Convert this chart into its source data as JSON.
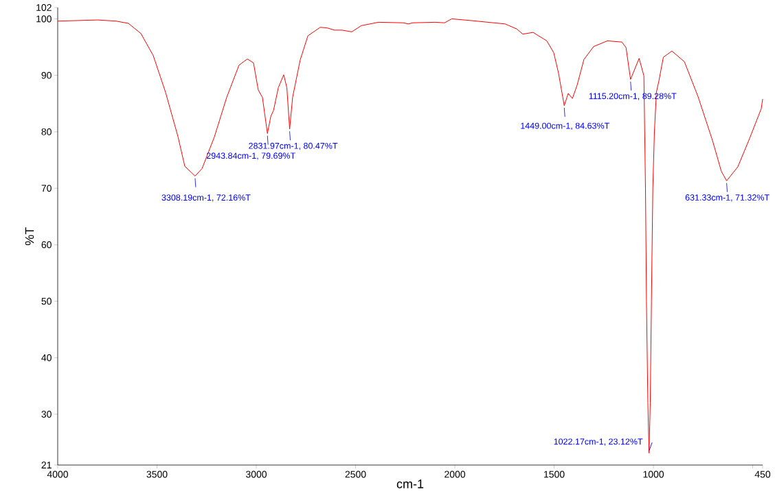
{
  "chart_data": {
    "type": "line",
    "xlabel": "cm-1",
    "ylabel": "%T",
    "color": "#ff0000",
    "xlim": [
      4000,
      450
    ],
    "ylim": [
      21,
      102
    ],
    "xticks": [
      4000,
      3500,
      3000,
      2500,
      2000,
      1500,
      1000,
      {
        "value": 500,
        "label": null
      },
      450
    ],
    "yticks": [
      21,
      30,
      40,
      50,
      60,
      70,
      80,
      90,
      100,
      102
    ],
    "x": [
      4000,
      3900,
      3800,
      3706,
      3644,
      3581,
      3519,
      3457,
      3394,
      3360,
      3308.19,
      3273,
      3211,
      3149,
      3087,
      3045,
      3014,
      2990,
      2969,
      2943.84,
      2927,
      2913,
      2889,
      2862,
      2846,
      2831.97,
      2817,
      2779,
      2740,
      2678,
      2644,
      2606,
      2568,
      2519,
      2471,
      2384,
      2260,
      2235,
      2211,
      2100,
      2052,
      2016,
      1920,
      1747,
      1688,
      1658,
      1606,
      1537,
      1502,
      1478,
      1449.0,
      1429,
      1408,
      1384,
      1350,
      1301,
      1232,
      1159,
      1138,
      1115.2,
      1072,
      1048,
      1040,
      1035,
      1028,
      1022.17,
      1016,
      1010,
      1003,
      995,
      985,
      972,
      950,
      907,
      844,
      775,
      702,
      658,
      631.33,
      575,
      516,
      457,
      450
    ],
    "values": [
      99.6,
      99.7,
      99.8,
      99.6,
      99.2,
      97.4,
      93.5,
      87.0,
      79.1,
      73.9,
      72.16,
      73.5,
      79.1,
      86.1,
      91.8,
      92.9,
      92.2,
      87.4,
      86.1,
      79.69,
      82.7,
      83.8,
      87.8,
      90.1,
      87.8,
      80.47,
      86.1,
      92.7,
      97.0,
      98.5,
      98.4,
      98.0,
      98.0,
      97.7,
      98.8,
      99.4,
      99.3,
      99.1,
      99.3,
      99.4,
      99.3,
      100.0,
      99.7,
      99.1,
      98.2,
      97.3,
      97.6,
      96.1,
      94.0,
      90.4,
      84.63,
      86.8,
      85.9,
      88.3,
      92.8,
      95.1,
      96.1,
      95.9,
      94.9,
      89.28,
      93.0,
      89.9,
      70,
      50,
      32,
      23.12,
      32,
      50,
      70,
      80,
      87,
      89.1,
      93.2,
      94.3,
      92.4,
      86.2,
      78.4,
      73.0,
      71.32,
      73.8,
      78.8,
      84.1,
      85.8
    ],
    "annotations": [
      {
        "text": "3308.19cm-1, 72.16%T",
        "x": 3308.19,
        "y": 72.16
      },
      {
        "text": "2943.84cm-1, 79.69%T",
        "x": 2943.84,
        "y": 79.69
      },
      {
        "text": "2831.97cm-1, 80.47%T",
        "x": 2831.97,
        "y": 80.47
      },
      {
        "text": "1449.00cm-1, 84.63%T",
        "x": 1449.0,
        "y": 84.63
      },
      {
        "text": "1115.20cm-1, 89.28%T",
        "x": 1115.2,
        "y": 89.28
      },
      {
        "text": "1022.17cm-1, 23.12%T",
        "x": 1022.17,
        "y": 23.12
      },
      {
        "text": "631.33cm-1, 71.32%T",
        "x": 631.33,
        "y": 71.32
      }
    ]
  }
}
